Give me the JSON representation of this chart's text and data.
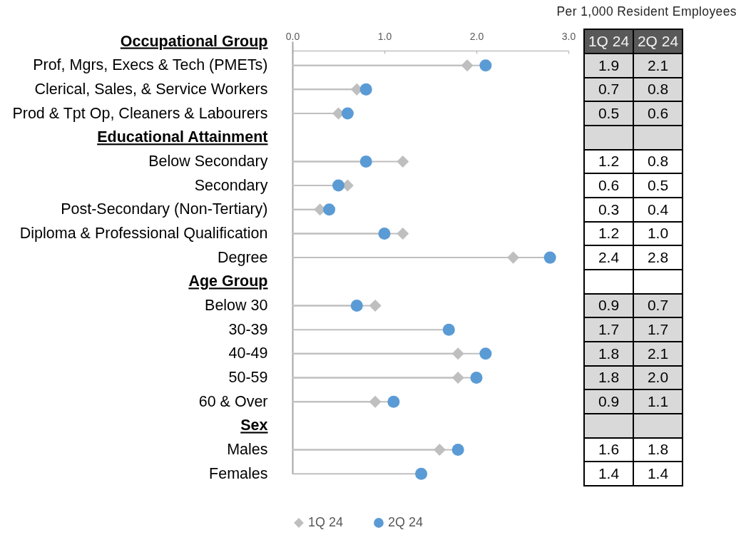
{
  "chart_data": {
    "type": "lollipop",
    "orientation": "horizontal",
    "categories": [
      "Occupational Group",
      "Prof, Mgrs, Execs & Tech (PMETs)",
      "Clerical, Sales, & Service Workers",
      "Prod & Tpt Op, Cleaners & Labourers",
      "Educational Attainment",
      "Below Secondary",
      "Secondary",
      "Post-Secondary (Non-Tertiary)",
      "Diploma & Professional Qualification",
      "Degree",
      "Age Group",
      "Below 30",
      "30-39",
      "40-49",
      "50-59",
      "60 & Over",
      "Sex",
      "Males",
      "Females"
    ],
    "series": [
      {
        "name": "1Q 24",
        "color": "#bfbfbf",
        "marker": "diamond",
        "values": [
          null,
          1.9,
          0.7,
          0.5,
          null,
          1.2,
          0.6,
          0.3,
          1.2,
          2.4,
          null,
          0.9,
          null,
          1.8,
          1.8,
          0.9,
          null,
          1.6,
          null
        ],
        "value_labels": [
          null,
          "1.9",
          "0.7",
          "0.5",
          null,
          "1.2",
          "0.6",
          "0.3",
          "1.2",
          "2.4",
          null,
          "0.9",
          "1.7",
          "1.8",
          "1.8",
          "0.9",
          null,
          "1.6",
          "1.4"
        ]
      },
      {
        "name": "2Q 24",
        "color": "#5b9bd5",
        "marker": "circle",
        "values": [
          null,
          2.1,
          0.8,
          0.6,
          null,
          0.8,
          0.5,
          0.4,
          1.0,
          2.8,
          null,
          0.7,
          1.7,
          2.1,
          2.0,
          1.1,
          null,
          1.8,
          1.4
        ],
        "value_labels": [
          null,
          "2.1",
          "0.8",
          "0.6",
          null,
          "0.8",
          "0.5",
          "0.4",
          "1.0",
          "2.8",
          null,
          "0.7",
          "1.7",
          "2.1",
          "2.0",
          "1.1",
          null,
          "1.8",
          "1.4"
        ]
      }
    ],
    "xlim": [
      0,
      3
    ],
    "xticks": [
      {
        "value": 0,
        "label": "0.0"
      },
      {
        "value": 1,
        "label": "1.0"
      },
      {
        "value": 2,
        "label": "2.0"
      },
      {
        "value": 3,
        "label": "3.0"
      }
    ],
    "legend": "bottom",
    "annotations": [
      "Per 1,000 Resident Employees"
    ]
  }
}
